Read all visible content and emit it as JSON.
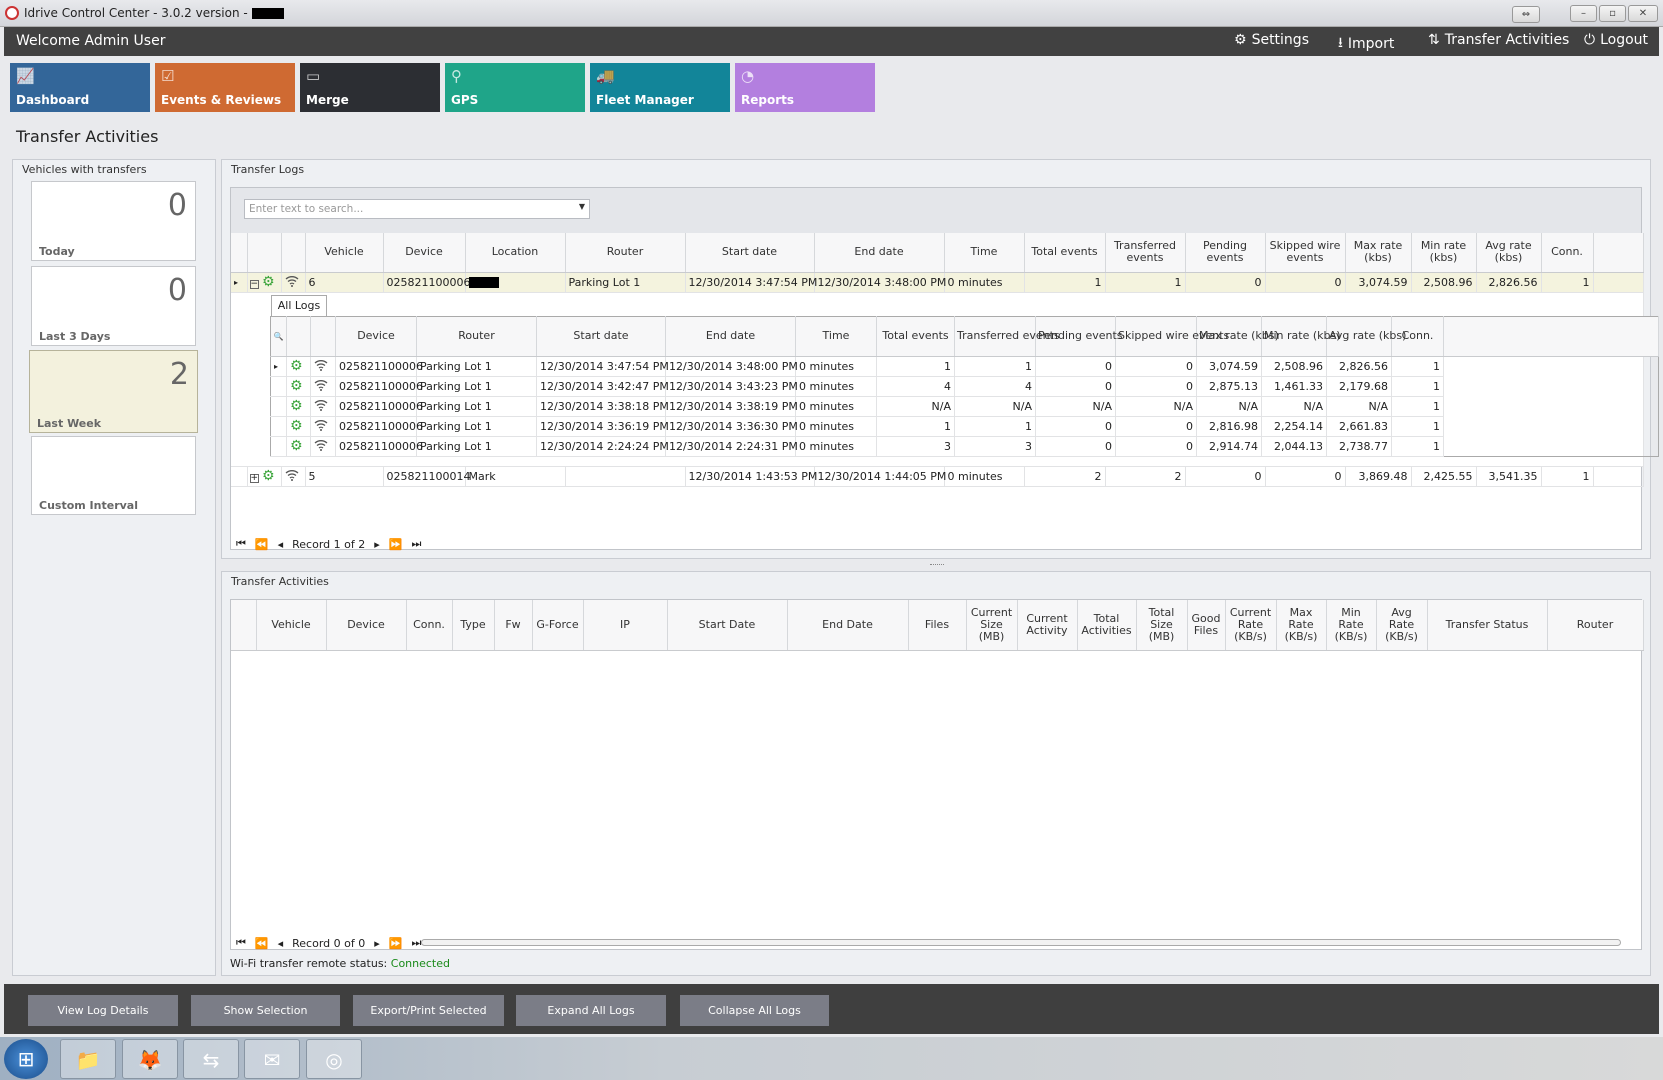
{
  "window": {
    "title": "Idrive Control Center - 3.0.2 version - "
  },
  "header": {
    "welcome": "Welcome Admin User",
    "menu": [
      {
        "label": "Settings",
        "icon": "gears-icon"
      },
      {
        "label": "Import",
        "icon": "download-icon"
      },
      {
        "label": "Transfer Activities",
        "icon": "transfer-icon"
      },
      {
        "label": "Logout",
        "icon": "power-icon"
      }
    ]
  },
  "tiles": [
    {
      "label": "Dashboard",
      "color": "#336699",
      "icon": "chart-icon"
    },
    {
      "label": "Events & Reviews",
      "color": "#cf6a32",
      "icon": "clipboard-icon"
    },
    {
      "label": "Merge",
      "color": "#2c2e33",
      "icon": "merge-icon"
    },
    {
      "label": "GPS",
      "color": "#1fa589",
      "icon": "map-pin-icon"
    },
    {
      "label": "Fleet Manager",
      "color": "#128599",
      "icon": "vehicles-icon"
    },
    {
      "label": "Reports",
      "color": "#b37fdf",
      "icon": "pie-icon"
    }
  ],
  "page_title": "Transfer Activities",
  "vehicles": {
    "title": "Vehicles with transfers",
    "cards": [
      {
        "label": "Today",
        "count": "0"
      },
      {
        "label": "Last 3 Days",
        "count": "0"
      },
      {
        "label": "Last Week",
        "count": "2",
        "selected": true
      },
      {
        "label": "Custom Interval",
        "count": ""
      }
    ]
  },
  "logs": {
    "title": "Transfer Logs",
    "search_placeholder": "Enter text to search...",
    "columns": [
      "",
      "",
      "",
      "Vehicle",
      "Device",
      "Location",
      "Router",
      "Start date",
      "End date",
      "Time",
      "Total events",
      "Transferred events",
      "Pending events",
      "Skipped wire events",
      "Max rate (kbs)",
      "Min rate (kbs)",
      "Avg rate (kbs)",
      "Conn."
    ],
    "rows": [
      {
        "expanded": true,
        "vehicle": "6",
        "device": "025821100006",
        "location": "",
        "router": "Parking Lot 1",
        "start": "12/30/2014 3:47:54 PM",
        "end": "12/30/2014 3:48:00 PM",
        "time": "0 minutes",
        "total": "1",
        "transferred": "1",
        "pending": "0",
        "skipped": "0",
        "max": "3,074.59",
        "min": "2,508.96",
        "avg": "2,826.56",
        "conn": "1"
      },
      {
        "expanded": false,
        "vehicle": "5",
        "device": "025821100014",
        "location": "Mark",
        "router": "",
        "start": "12/30/2014 1:43:53 PM",
        "end": "12/30/2014 1:44:05 PM",
        "time": "0 minutes",
        "total": "2",
        "transferred": "2",
        "pending": "0",
        "skipped": "0",
        "max": "3,869.48",
        "min": "2,425.55",
        "avg": "3,541.35",
        "conn": "1"
      }
    ],
    "detail": {
      "tab": "All Logs",
      "columns": [
        "",
        "",
        "",
        "Device",
        "Router",
        "Start date",
        "End date",
        "Time",
        "Total events",
        "Transferred events",
        "Pending events",
        "Skipped wire events",
        "Max rate (kbs)",
        "Min rate (kbs)",
        "Avg rate (kbs)",
        "Conn."
      ],
      "rows": [
        [
          "025821100006",
          "Parking Lot 1",
          "12/30/2014 3:47:54 PM",
          "12/30/2014 3:48:00 PM",
          "0 minutes",
          "1",
          "1",
          "0",
          "0",
          "3,074.59",
          "2,508.96",
          "2,826.56",
          "1"
        ],
        [
          "025821100006",
          "Parking Lot 1",
          "12/30/2014 3:42:47 PM",
          "12/30/2014 3:43:23 PM",
          "0 minutes",
          "4",
          "4",
          "0",
          "0",
          "2,875.13",
          "1,461.33",
          "2,179.68",
          "1"
        ],
        [
          "025821100006",
          "Parking Lot 1",
          "12/30/2014 3:38:18 PM",
          "12/30/2014 3:38:19 PM",
          "0 minutes",
          "N/A",
          "N/A",
          "N/A",
          "N/A",
          "N/A",
          "N/A",
          "N/A",
          "1"
        ],
        [
          "025821100006",
          "Parking Lot 1",
          "12/30/2014 3:36:19 PM",
          "12/30/2014 3:36:30 PM",
          "0 minutes",
          "1",
          "1",
          "0",
          "0",
          "2,816.98",
          "2,254.14",
          "2,661.83",
          "1"
        ],
        [
          "025821100006",
          "Parking Lot 1",
          "12/30/2014 2:24:24 PM",
          "12/30/2014 2:24:31 PM",
          "0 minutes",
          "3",
          "3",
          "0",
          "0",
          "2,914.74",
          "2,044.13",
          "2,738.77",
          "1"
        ]
      ]
    },
    "pager": "Record 1 of 2"
  },
  "activities": {
    "title": "Transfer Activities",
    "columns": [
      "",
      "Vehicle",
      "Device",
      "Conn.",
      "Type",
      "Fw",
      "G-Force",
      "IP",
      "Start Date",
      "End Date",
      "Files",
      "Current Size (MB)",
      "Current Activity",
      "Total Activities",
      "Total Size (MB)",
      "Good Files",
      "Current Rate (KB/s)",
      "Max Rate (KB/s)",
      "Min Rate (KB/s)",
      "Avg Rate (KB/s)",
      "Transfer Status",
      "Router"
    ],
    "pager": "Record 0 of 0"
  },
  "status": {
    "label": "Wi-Fi transfer remote status:",
    "value": "Connected",
    "color": "#1a8a1a"
  },
  "actions": [
    "View Log Details",
    "Show Selection",
    "Export/Print Selected",
    "Expand All Logs",
    "Collapse All Logs"
  ],
  "taskbar": [
    {
      "icon": "windows-start-icon"
    },
    {
      "icon": "file-explorer-icon"
    },
    {
      "icon": "firefox-icon"
    },
    {
      "icon": "teamviewer-icon"
    },
    {
      "icon": "mail-icon"
    },
    {
      "icon": "idrive-app-icon"
    }
  ]
}
